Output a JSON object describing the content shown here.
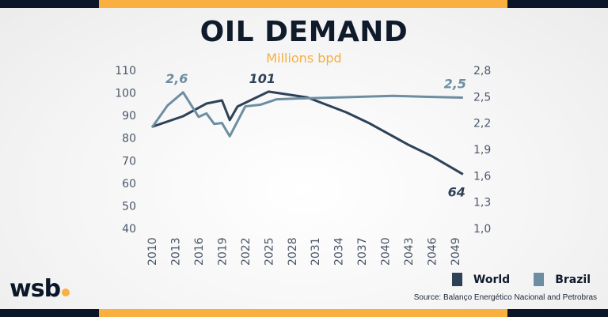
{
  "header": {
    "title": "OIL DEMAND",
    "subtitle": "Millions bpd"
  },
  "logo": {
    "text": "wsb"
  },
  "source": "Source: Balanço Energético Nacional and Petrobras",
  "colors": {
    "world": "#2e4257",
    "brazil": "#6d8ea1",
    "accent": "#f9b041",
    "dark": "#0b1728"
  },
  "chart_data": {
    "type": "line",
    "title": "OIL DEMAND",
    "subtitle": "Millions bpd",
    "x_ticks": [
      "2010",
      "2013",
      "2016",
      "2019",
      "2022",
      "2025",
      "2028",
      "2031",
      "2034",
      "2037",
      "2040",
      "2043",
      "2046",
      "2049"
    ],
    "y_left": {
      "range": [
        40,
        110
      ],
      "ticks": [
        "110",
        "100",
        "90",
        "80",
        "70",
        "60",
        "50",
        "40"
      ]
    },
    "y_right": {
      "range": [
        1.0,
        2.8
      ],
      "ticks": [
        "2,8",
        "2,5",
        "2,2",
        "1,9",
        "1,6",
        "1,3",
        "1,0"
      ]
    },
    "legend": {
      "position": "bottom-right",
      "entries": [
        "World",
        "Brazil"
      ]
    },
    "grid": false,
    "series": [
      {
        "name": "World",
        "axis": "left",
        "x": [
          2010,
          2014,
          2017,
          2019,
          2020,
          2021,
          2025,
          2030,
          2035,
          2038,
          2043,
          2046,
          2050
        ],
        "y": [
          85,
          89.7,
          95.3,
          96.7,
          88,
          94,
          100.6,
          98,
          91.4,
          86.5,
          77,
          72,
          64
        ]
      },
      {
        "name": "Brazil",
        "axis": "right",
        "x": [
          2010,
          2012,
          2014,
          2016,
          2017,
          2018,
          2019,
          2020,
          2022,
          2024,
          2026,
          2029,
          2033,
          2037,
          2041,
          2045,
          2050
        ],
        "y": [
          2.15,
          2.4,
          2.55,
          2.27,
          2.31,
          2.19,
          2.2,
          2.05,
          2.39,
          2.41,
          2.47,
          2.48,
          2.49,
          2.5,
          2.51,
          2.5,
          2.49
        ]
      }
    ],
    "annotations": [
      {
        "series": "Brazil",
        "x": 2014,
        "text": "2,6"
      },
      {
        "series": "World",
        "x": 2025,
        "text": "101"
      },
      {
        "series": "Brazil",
        "x": 2050,
        "text": "2,5"
      },
      {
        "series": "World",
        "x": 2050,
        "text": "64"
      }
    ]
  }
}
